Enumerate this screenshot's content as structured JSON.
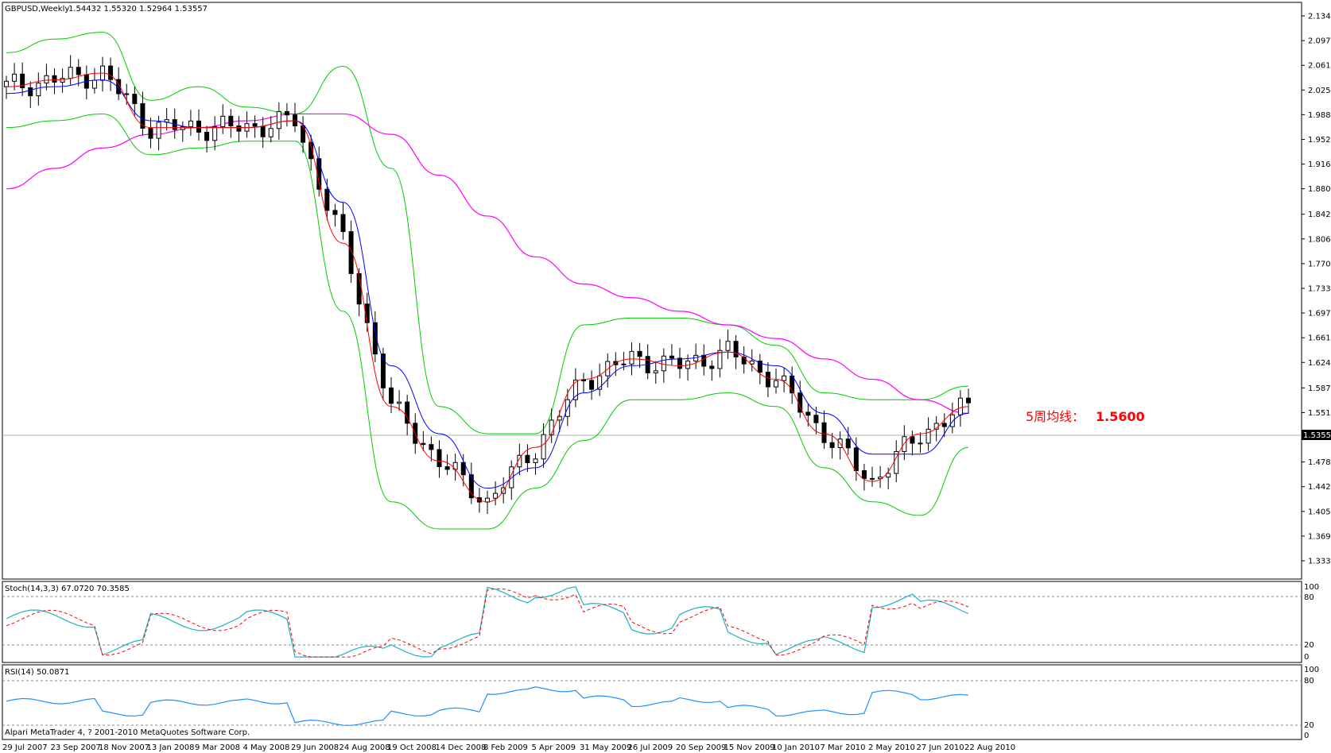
{
  "colors": {
    "background": "#ffffff",
    "frame": "#000000",
    "bull_candle": "#ffffff",
    "bear_candle": "#000000",
    "ma_red": "#ff0000",
    "ma_blue": "#0000ff",
    "ma_magenta": "#ff00ff",
    "bollinger": "#00cc00",
    "stoch_main": "#20b0c0",
    "stoch_signal": "#ff0000",
    "rsi": "#1e90ff",
    "annotation": "#ff0000"
  },
  "header": {
    "symbol_label": "GBPUSD,Weekly",
    "ohlc_label": "1.54432 1.55320 1.52964 1.53557"
  },
  "annotation": {
    "label": "5周均线：",
    "value": "1.5600"
  },
  "stoch_panel": {
    "label": "Stoch(14,3,3) 67.0720 70.3585",
    "scale": [
      "100",
      "80",
      "20",
      "0"
    ]
  },
  "rsi_panel": {
    "label": "RSI(14) 50.0871",
    "scale": [
      "100",
      "80",
      "20",
      "0"
    ]
  },
  "footer": {
    "copyright": "Alpari MetaTrader 4, ? 2001-2010 MetaQuotes Software Corp."
  },
  "chart_data": {
    "type": "line",
    "title": "GBPUSD,Weekly",
    "y_price_labels": [
      "2.13410",
      "2.09780",
      "2.06150",
      "2.02520",
      "1.98890",
      "1.95260",
      "1.91630",
      "1.88000",
      "1.84260",
      "1.80630",
      "1.77000",
      "1.73370",
      "1.69740",
      "1.66110",
      "1.62480",
      "1.58740",
      "1.55110",
      "1.51480",
      "1.47850",
      "1.44220",
      "1.40590",
      "1.36960",
      "1.33330"
    ],
    "current_price_label": "1.53557",
    "ylim": [
      1.3333,
      2.1341
    ],
    "x_date_labels": [
      "29 Jul 2007",
      "23 Sep 2007",
      "18 Nov 2007",
      "13 Jan 2008",
      "9 Mar 2008",
      "4 May 2008",
      "29 Jun 2008",
      "24 Aug 2008",
      "19 Oct 2008",
      "14 Dec 2008",
      "8 Feb 2009",
      "5 Apr 2009",
      "31 May 2009",
      "26 Jul 2009",
      "20 Sep 2009",
      "15 Nov 2009",
      "10 Jan 2010",
      "7 Mar 2010",
      "2 May 2010",
      "27 Jun 2010",
      "22 Aug 2010"
    ],
    "x": [
      "29 Jul 2007",
      "23 Sep 2007",
      "18 Nov 2007",
      "13 Jan 2008",
      "9 Mar 2008",
      "4 May 2008",
      "29 Jun 2008",
      "24 Aug 2008",
      "19 Oct 2008",
      "14 Dec 2008",
      "8 Feb 2009",
      "5 Apr 2009",
      "31 May 2009",
      "26 Jul 2009",
      "20 Sep 2009",
      "15 Nov 2009",
      "10 Jan 2010",
      "7 Mar 2010",
      "2 May 2010",
      "27 Jun 2010",
      "22 Aug 2010"
    ],
    "series": [
      {
        "name": "5周均线",
        "values": [
          2.03,
          2.04,
          2.05,
          1.97,
          1.97,
          1.97,
          1.98,
          1.8,
          1.56,
          1.48,
          1.42,
          1.5,
          1.6,
          1.63,
          1.62,
          1.64,
          1.6,
          1.52,
          1.45,
          1.52,
          1.56
        ]
      },
      {
        "name": "",
        "values": [
          2.02,
          2.03,
          2.04,
          1.98,
          1.97,
          1.97,
          1.98,
          1.86,
          1.62,
          1.52,
          1.44,
          1.47,
          1.58,
          1.62,
          1.63,
          1.64,
          1.62,
          1.55,
          1.49,
          1.49,
          1.55
        ]
      },
      {
        "name": "",
        "values": [
          1.88,
          1.91,
          1.94,
          1.96,
          1.97,
          1.98,
          1.99,
          1.99,
          1.96,
          1.9,
          1.84,
          1.78,
          1.74,
          1.72,
          1.7,
          1.68,
          1.66,
          1.63,
          1.6,
          1.57,
          1.55
        ]
      },
      {
        "name": "",
        "values": [
          2.08,
          2.1,
          2.11,
          2.01,
          2.03,
          2.0,
          1.99,
          2.06,
          1.91,
          1.56,
          1.52,
          1.52,
          1.68,
          1.69,
          1.69,
          1.68,
          1.65,
          1.58,
          1.57,
          1.57,
          1.59
        ]
      },
      {
        "name": "",
        "values": [
          1.97,
          1.98,
          1.99,
          1.93,
          1.94,
          1.95,
          1.95,
          1.7,
          1.42,
          1.38,
          1.38,
          1.44,
          1.51,
          1.57,
          1.57,
          1.58,
          1.56,
          1.47,
          1.42,
          1.4,
          1.5
        ]
      }
    ],
    "oscillator_stoch": {
      "main_last": 67.072,
      "signal_last": 70.3585,
      "range": [
        0,
        100
      ],
      "levels": [
        20,
        80
      ]
    },
    "oscillator_rsi": {
      "last": 50.0871,
      "range": [
        0,
        100
      ],
      "levels": [
        20,
        80
      ]
    }
  }
}
